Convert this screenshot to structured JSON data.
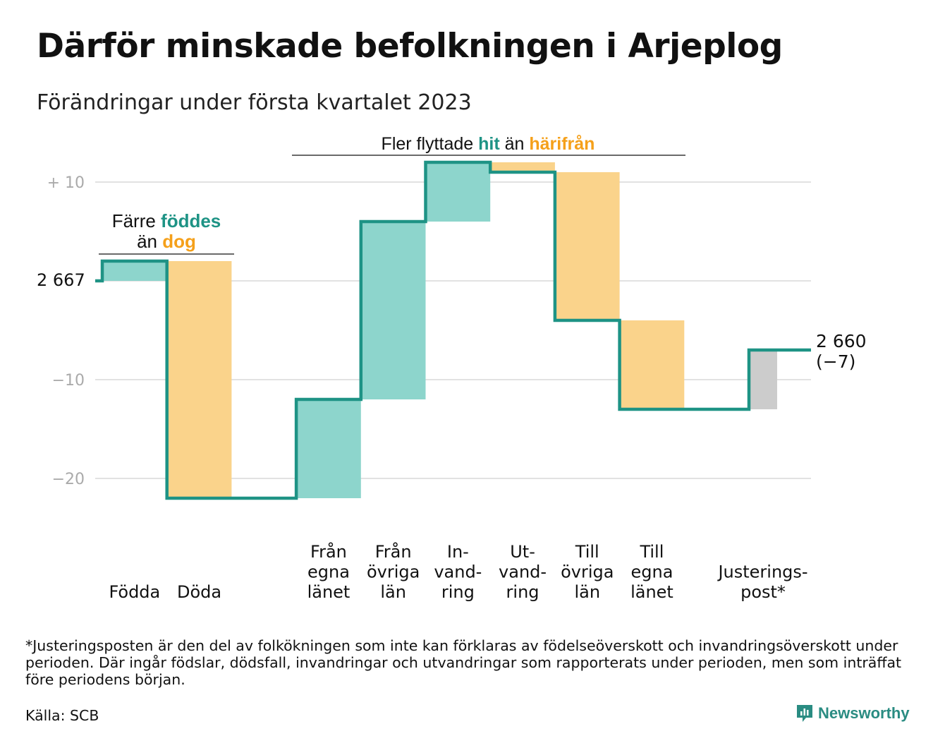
{
  "title": "Därför minskade befolkningen i Arjeplog",
  "subtitle": "Förändringar under första kvartalet 2023",
  "footnote": "*Justeringsposten är den del av folkökningen som inte kan förklaras av födelseöverskott och invandringsöverskott under perioden. Där ingår födslar, dödsfall, invandringar och utvandringar som rapporterats under perioden, men som inträffat före periodens början.",
  "source": "Källa: SCB",
  "brand": {
    "name": "Newsworthy",
    "icon": "newsworthy-logo-icon"
  },
  "colors": {
    "increase": "#8dd5cc",
    "decrease": "#fad38b",
    "adjustment": "#cccccc",
    "line": "#1e9385",
    "accent_teal": "#1e9385",
    "accent_orange": "#f5a01a",
    "grid": "#e2e2e2",
    "tick": "#aaaaaa"
  },
  "chart_data": {
    "type": "waterfall",
    "baseline": 0,
    "start_label": "2 667",
    "end_label_lines": [
      "2 660",
      "(−7)"
    ],
    "yticks": [
      {
        "value": 10,
        "label": "+ 10"
      },
      {
        "value": 0,
        "label": ""
      },
      {
        "value": -10,
        "label": "−10"
      },
      {
        "value": -20,
        "label": "−20"
      }
    ],
    "ylim": [
      -24,
      12
    ],
    "steps": [
      {
        "key": "fodda",
        "label_lines": [
          "Födda"
        ],
        "value": 2,
        "kind": "increase"
      },
      {
        "key": "doda",
        "label_lines": [
          "Döda"
        ],
        "value": -24,
        "kind": "decrease"
      },
      {
        "key": "gap",
        "label_lines": [],
        "value": 0,
        "kind": "gap"
      },
      {
        "key": "fran-egna-lanet",
        "label_lines": [
          "Från",
          "egna",
          "länet"
        ],
        "value": 10,
        "kind": "increase"
      },
      {
        "key": "fran-ovriga-lan",
        "label_lines": [
          "Från",
          "övriga",
          "län"
        ],
        "value": 18,
        "kind": "increase"
      },
      {
        "key": "invandring",
        "label_lines": [
          "In-",
          "vand-",
          "ring"
        ],
        "value": 6,
        "kind": "increase"
      },
      {
        "key": "utvandring",
        "label_lines": [
          "Ut-",
          "vand-",
          "ring"
        ],
        "value": -1,
        "kind": "decrease"
      },
      {
        "key": "till-ovriga-lan",
        "label_lines": [
          "Till",
          "övriga",
          "län"
        ],
        "value": -15,
        "kind": "decrease"
      },
      {
        "key": "till-egna-lanet",
        "label_lines": [
          "Till",
          "egna",
          "länet"
        ],
        "value": -9,
        "kind": "decrease"
      },
      {
        "key": "gap2",
        "label_lines": [],
        "value": 0,
        "kind": "gap"
      },
      {
        "key": "justeringspost",
        "label_lines": [
          "Justerings-",
          "post*"
        ],
        "value": 6,
        "kind": "adjustment"
      }
    ],
    "annotations": [
      {
        "key": "births-deaths",
        "segments": [
          [
            {
              "text": "Färre ",
              "color": "#111111"
            },
            {
              "text": "föddes",
              "color": "#1e9385"
            }
          ],
          [
            {
              "text": "än ",
              "color": "#111111"
            },
            {
              "text": "dog",
              "color": "#f5a01a"
            }
          ]
        ]
      },
      {
        "key": "migration",
        "segments": [
          [
            {
              "text": "Fler flyttade ",
              "color": "#111111"
            },
            {
              "text": "hit",
              "color": "#1e9385"
            },
            {
              "text": " än ",
              "color": "#111111"
            },
            {
              "text": "härifrån",
              "color": "#f5a01a"
            }
          ]
        ]
      }
    ]
  }
}
